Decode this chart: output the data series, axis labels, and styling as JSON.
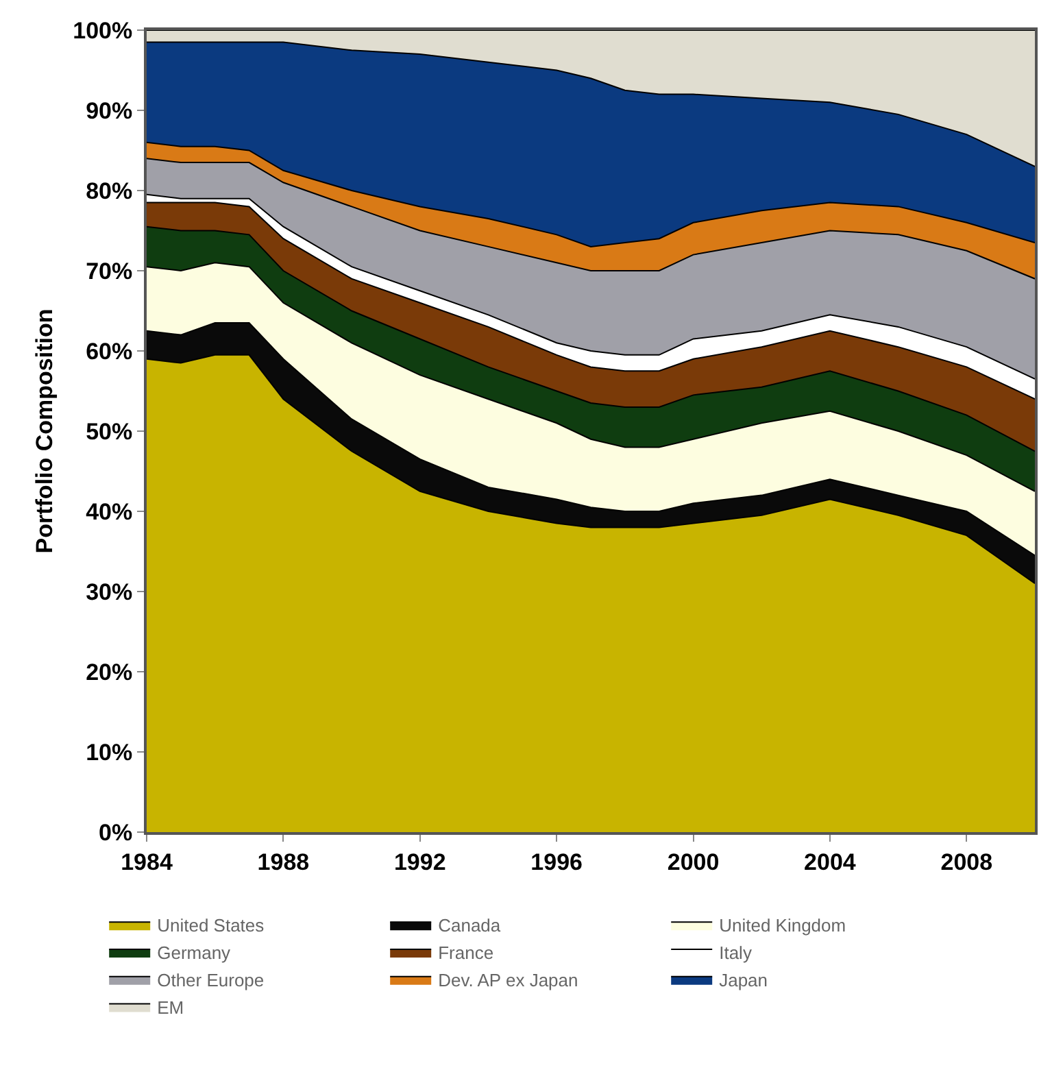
{
  "chart_data": {
    "type": "area",
    "stacked": true,
    "ylabel": "Portfolio Composition",
    "x": [
      1984,
      1985,
      1986,
      1987,
      1988,
      1990,
      1992,
      1994,
      1996,
      1997,
      1998,
      1999,
      2000,
      2002,
      2004,
      2006,
      2008,
      2010
    ],
    "xlim": [
      1984,
      2010
    ],
    "xticks": [
      1984,
      1988,
      1992,
      1996,
      2000,
      2004,
      2008
    ],
    "ylim": [
      0,
      100
    ],
    "yticks": [
      {
        "value": 0,
        "label": "0%"
      },
      {
        "value": 10,
        "label": "10%"
      },
      {
        "value": 20,
        "label": "20%"
      },
      {
        "value": 30,
        "label": "30%"
      },
      {
        "value": 40,
        "label": "40%"
      },
      {
        "value": 50,
        "label": "50%"
      },
      {
        "value": 60,
        "label": "60%"
      },
      {
        "value": 70,
        "label": "70%"
      },
      {
        "value": 80,
        "label": "80%"
      },
      {
        "value": 90,
        "label": "90%"
      },
      {
        "value": 100,
        "label": "100%"
      }
    ],
    "legend": "bottom",
    "series": [
      {
        "name": "United States",
        "color": "#c8b400",
        "values": [
          59,
          58.5,
          59.5,
          59.5,
          54,
          47.5,
          42.5,
          40,
          38.5,
          38,
          38,
          38,
          38.5,
          39.5,
          41.5,
          39.5,
          37,
          31
        ]
      },
      {
        "name": "Canada",
        "color": "#0a0a0a",
        "values": [
          3.5,
          3.5,
          4,
          4,
          5,
          4,
          4,
          3,
          3,
          2.5,
          2,
          2,
          2.5,
          2.5,
          2.5,
          2.5,
          3,
          3.5
        ]
      },
      {
        "name": "United Kingdom",
        "color": "#fdfde0",
        "values": [
          8,
          8,
          7.5,
          7,
          7,
          9.5,
          10.5,
          11,
          9.5,
          8.5,
          8,
          8,
          8,
          9,
          8.5,
          8,
          7,
          8
        ]
      },
      {
        "name": "Germany",
        "color": "#0f3d10",
        "values": [
          5,
          5,
          4,
          4,
          4,
          4,
          4.5,
          4,
          4,
          4.5,
          5,
          5,
          5.5,
          4.5,
          5,
          5,
          5,
          5
        ]
      },
      {
        "name": "France",
        "color": "#7a3a08",
        "values": [
          3,
          3.5,
          3.5,
          3.5,
          4,
          4,
          4.5,
          5,
          4.5,
          4.5,
          4.5,
          4.5,
          4.5,
          5,
          5,
          5.5,
          6,
          6.5
        ]
      },
      {
        "name": "Italy",
        "color": "#ffffff",
        "values": [
          1,
          0.5,
          0.5,
          1,
          1.5,
          1.5,
          1.5,
          1.5,
          1.5,
          2,
          2,
          2,
          2.5,
          2,
          2,
          2.5,
          2.5,
          2.5
        ]
      },
      {
        "name": "Other Europe",
        "color": "#a0a0a8",
        "values": [
          4.5,
          4.5,
          4.5,
          4.5,
          5.5,
          7.5,
          7.5,
          8.5,
          10,
          10,
          10.5,
          10.5,
          10.5,
          11,
          10.5,
          11.5,
          12,
          12.5
        ]
      },
      {
        "name": "Dev. AP ex Japan",
        "color": "#d97a16",
        "values": [
          2,
          2,
          2,
          1.5,
          1.5,
          2,
          3,
          3.5,
          3.5,
          3,
          3.5,
          4,
          4,
          4,
          3.5,
          3.5,
          3.5,
          4.5
        ]
      },
      {
        "name": "Japan",
        "color": "#0b3a80",
        "values": [
          12.5,
          13,
          13,
          13.5,
          16,
          17.5,
          19,
          19.5,
          20.5,
          21,
          19,
          18,
          16,
          14,
          12.5,
          11.5,
          11,
          9.5
        ]
      },
      {
        "name": "EM",
        "color": "#e0ddd0",
        "values": [
          1.5,
          1.5,
          1.5,
          1.5,
          1.5,
          2.5,
          3,
          4,
          5,
          6,
          7.5,
          8,
          8,
          8.5,
          9,
          10.5,
          13,
          17
        ]
      }
    ]
  }
}
